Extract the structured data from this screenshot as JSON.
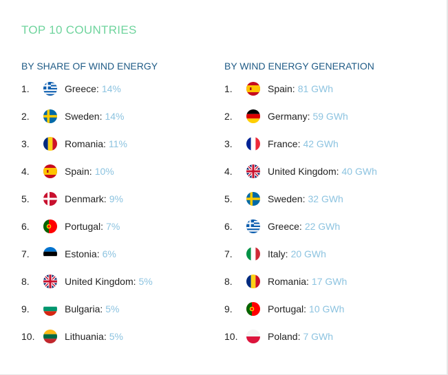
{
  "title": "TOP 10 COUNTRIES",
  "share": {
    "heading": "BY SHARE OF WIND ENERGY",
    "items": [
      {
        "rank": "1.",
        "country": "Greece:",
        "value": "14%",
        "flag": "greece"
      },
      {
        "rank": "2.",
        "country": "Sweden:",
        "value": "14%",
        "flag": "sweden"
      },
      {
        "rank": "3.",
        "country": "Romania:",
        "value": "11%",
        "flag": "romania"
      },
      {
        "rank": "4.",
        "country": "Spain:",
        "value": "10%",
        "flag": "spain"
      },
      {
        "rank": "5.",
        "country": "Denmark:",
        "value": "9%",
        "flag": "denmark"
      },
      {
        "rank": "6.",
        "country": "Portugal:",
        "value": "7%",
        "flag": "portugal"
      },
      {
        "rank": "7.",
        "country": "Estonia:",
        "value": "6%",
        "flag": "estonia"
      },
      {
        "rank": "8.",
        "country": "United Kingdom:",
        "value": "5%",
        "flag": "uk"
      },
      {
        "rank": "9.",
        "country": "Bulgaria:",
        "value": "5%",
        "flag": "bulgaria"
      },
      {
        "rank": "10.",
        "country": "Lithuania:",
        "value": "5%",
        "flag": "lithuania"
      }
    ]
  },
  "generation": {
    "heading": "BY WIND ENERGY GENERATION",
    "items": [
      {
        "rank": "1.",
        "country": "Spain:",
        "value": "81 GWh",
        "flag": "spain"
      },
      {
        "rank": "2.",
        "country": "Germany:",
        "value": "59 GWh",
        "flag": "germany"
      },
      {
        "rank": "3.",
        "country": "France:",
        "value": "42 GWh",
        "flag": "france"
      },
      {
        "rank": "4.",
        "country": "United Kingdom:",
        "value": "40 GWh",
        "flag": "uk"
      },
      {
        "rank": "5.",
        "country": "Sweden:",
        "value": "32 GWh",
        "flag": "sweden"
      },
      {
        "rank": "6.",
        "country": "Greece:",
        "value": "22 GWh",
        "flag": "greece"
      },
      {
        "rank": "7.",
        "country": "Italy:",
        "value": "20 GWh",
        "flag": "italy"
      },
      {
        "rank": "8.",
        "country": "Romania:",
        "value": "17 GWh",
        "flag": "romania"
      },
      {
        "rank": "9.",
        "country": "Portugal:",
        "value": "10 GWh",
        "flag": "portugal"
      },
      {
        "rank": "10.",
        "country": "Poland:",
        "value": "7 GWh",
        "flag": "poland"
      }
    ]
  },
  "colors": {
    "title": "#6fd49d",
    "heading": "#1f5b86",
    "value": "#8cc3e0",
    "text": "#222222"
  }
}
